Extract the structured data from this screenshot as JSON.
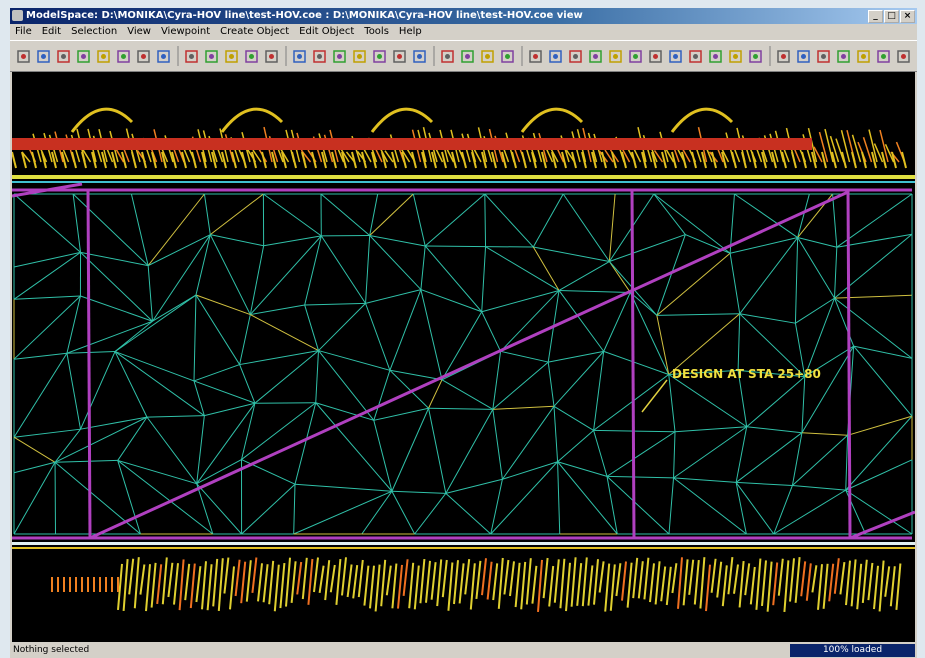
{
  "window": {
    "title": "ModelSpace: D:\\MONIKA\\Cyra-HOV line\\test-HOV.coe : D:\\MONIKA\\Cyra-HOV line\\test-HOV.coe view",
    "controls": [
      "_",
      "□",
      "×"
    ]
  },
  "menu": [
    "File",
    "Edit",
    "Selection",
    "View",
    "Viewpoint",
    "Create Object",
    "Edit Object",
    "Tools",
    "Help"
  ],
  "viewport": {
    "annotation": "DESIGN AT STA 25+80"
  },
  "status": {
    "message": "Nothing selected",
    "progress": "100% loaded"
  }
}
